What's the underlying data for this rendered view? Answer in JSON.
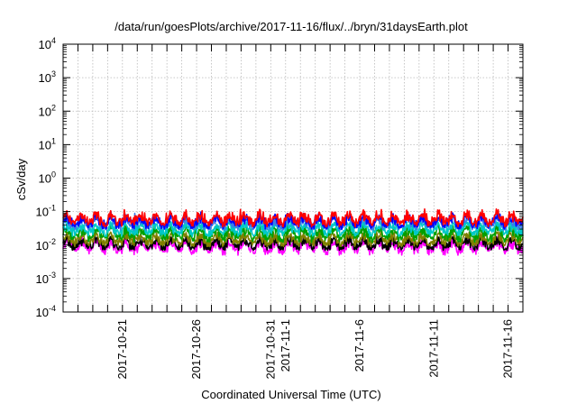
{
  "chart_data": {
    "type": "line",
    "title": "/data/run/goesPlots/archive/2017-11-16/flux/../bryn/31daysEarth.plot",
    "xlabel": "Coordinated Universal Time (UTC)",
    "ylabel": "cSv/day",
    "y_scale": "log",
    "ylim": [
      0.0001,
      10000
    ],
    "y_ticks": [
      {
        "value": 0.0001,
        "base": "10",
        "exp": "-4"
      },
      {
        "value": 0.001,
        "base": "10",
        "exp": "-3"
      },
      {
        "value": 0.01,
        "base": "10",
        "exp": "-2"
      },
      {
        "value": 0.1,
        "base": "10",
        "exp": "-1"
      },
      {
        "value": 1,
        "base": "10",
        "exp": "0"
      },
      {
        "value": 10,
        "base": "10",
        "exp": "1"
      },
      {
        "value": 100,
        "base": "10",
        "exp": "2"
      },
      {
        "value": 1000,
        "base": "10",
        "exp": "3"
      },
      {
        "value": 10000,
        "base": "10",
        "exp": "4"
      }
    ],
    "x_range": [
      "2017-10-17",
      "2017-11-17"
    ],
    "x_tick_labels": [
      {
        "date": "2017-10-21",
        "label": "2017-10-21"
      },
      {
        "date": "2017-10-26",
        "label": "2017-10-26"
      },
      {
        "date": "2017-10-31",
        "label": "2017-10-31"
      },
      {
        "date": "2017-11-01",
        "label": "2017-11-1"
      },
      {
        "date": "2017-11-06",
        "label": "2017-11-6"
      },
      {
        "date": "2017-11-11",
        "label": "2017-11-11"
      },
      {
        "date": "2017-11-16",
        "label": "2017-11-16"
      }
    ],
    "grid": true,
    "series": [
      {
        "color": "#ff0000",
        "mean": 0.06,
        "low": 0.035,
        "high": 0.12
      },
      {
        "color": "#0000ff",
        "mean": 0.05,
        "low": 0.03,
        "high": 0.11
      },
      {
        "color": "#3a7de8",
        "mean": 0.045,
        "low": 0.028,
        "high": 0.1
      },
      {
        "color": "#00c8c8",
        "mean": 0.03,
        "low": 0.018,
        "high": 0.05
      },
      {
        "color": "#00a000",
        "mean": 0.022,
        "low": 0.012,
        "high": 0.04
      },
      {
        "color": "#808000",
        "mean": 0.015,
        "low": 0.009,
        "high": 0.025
      },
      {
        "color": "#000000",
        "mean": 0.011,
        "low": 0.007,
        "high": 0.018
      },
      {
        "color": "#ff00ff",
        "mean": 0.009,
        "low": 0.005,
        "high": 0.02
      }
    ]
  }
}
